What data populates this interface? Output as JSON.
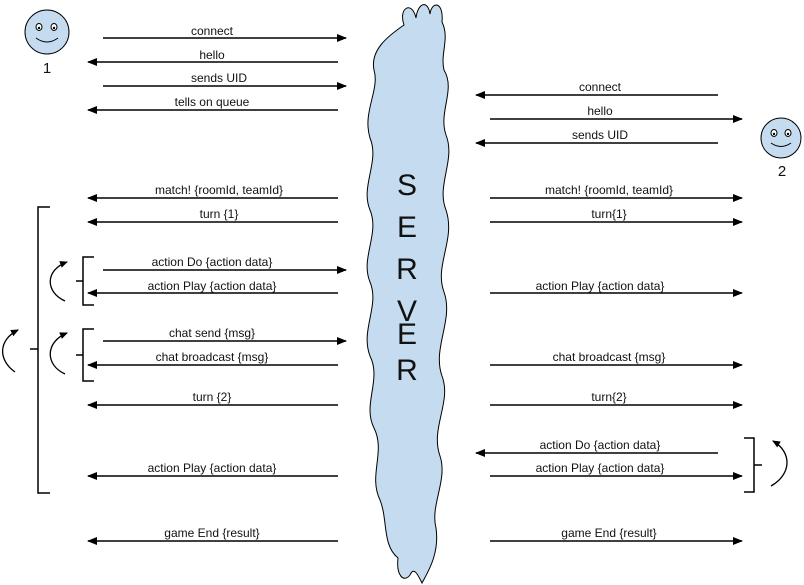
{
  "server": {
    "letters": [
      "S",
      "E",
      "R",
      "V",
      "E",
      "R"
    ],
    "fill": "#c5dcf0"
  },
  "clients": {
    "left_number": "1",
    "right_number": "2",
    "face_color": "#c5dcf0"
  },
  "left_messages": [
    "connect",
    "hello",
    "sends UID",
    "tells on queue",
    "match! {roomId, teamId}",
    "turn {1}",
    "action Do {action data}",
    "action Play {action data}",
    "chat send {msg}",
    "chat broadcast {msg}",
    "turn {2}",
    "action Play {action data}",
    "game End {result}"
  ],
  "right_messages": [
    "connect",
    "hello",
    "sends UID",
    "match! {roomId, teamId}",
    "turn{1}",
    "action Play {action data}",
    "chat broadcast {msg}",
    "turn{2}",
    "action Do {action data}",
    "action Play {action data}",
    "game End {result}"
  ]
}
